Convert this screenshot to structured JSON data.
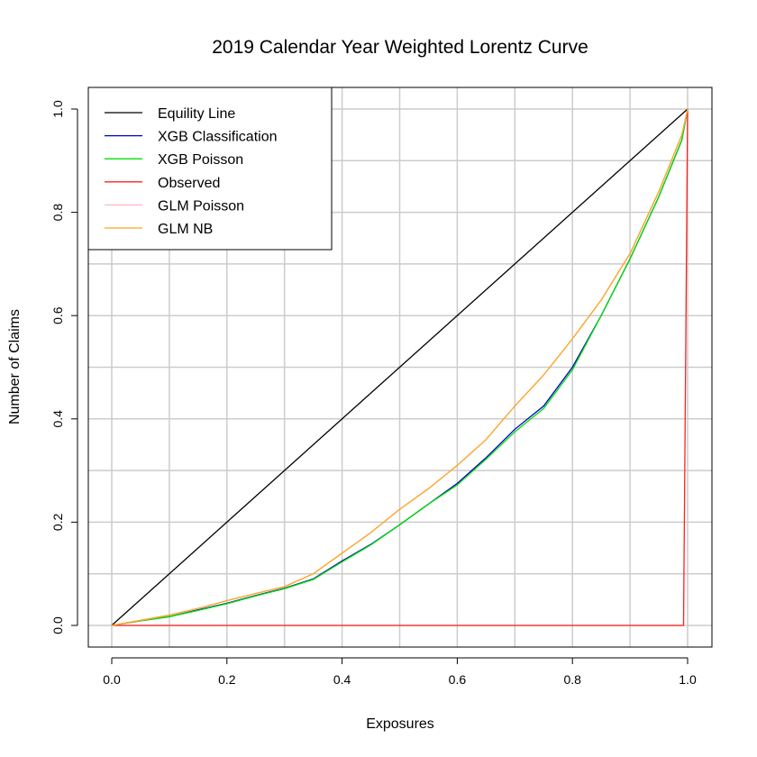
{
  "chart_data": {
    "type": "line",
    "title": "2019 Calendar Year Weighted Lorentz Curve",
    "xlabel": "Exposures",
    "ylabel": "Number of Claims",
    "xlim": [
      0.0,
      1.0
    ],
    "ylim": [
      0.0,
      1.0
    ],
    "x_ticks": [
      "0.0",
      "0.2",
      "0.4",
      "0.6",
      "0.8",
      "1.0"
    ],
    "y_ticks": [
      "0.0",
      "0.2",
      "0.4",
      "0.6",
      "0.8",
      "1.0"
    ],
    "x_tick_values": [
      0.0,
      0.2,
      0.4,
      0.6,
      0.8,
      1.0
    ],
    "y_tick_values": [
      0.0,
      0.2,
      0.4,
      0.6,
      0.8,
      1.0
    ],
    "grid": true,
    "grid_x": [
      0.0,
      0.1,
      0.2,
      0.3,
      0.4,
      0.5,
      0.6,
      0.7,
      0.8,
      0.9,
      1.0
    ],
    "grid_y": [
      0.0,
      0.1,
      0.2,
      0.3,
      0.4,
      0.5,
      0.6,
      0.7,
      0.8,
      0.9,
      1.0
    ],
    "legend_position": "top-left",
    "series": [
      {
        "name": "Equility Line",
        "color": "#000000",
        "x": [
          0.0,
          1.0
        ],
        "y": [
          0.0,
          1.0
        ]
      },
      {
        "name": "XGB Classification",
        "color": "#0000cd",
        "x": [
          0.0,
          0.05,
          0.1,
          0.15,
          0.2,
          0.25,
          0.3,
          0.35,
          0.4,
          0.45,
          0.5,
          0.55,
          0.6,
          0.65,
          0.7,
          0.75,
          0.8,
          0.85,
          0.9,
          0.95,
          0.99,
          1.0
        ],
        "y": [
          0.0,
          0.009,
          0.017,
          0.03,
          0.043,
          0.058,
          0.072,
          0.09,
          0.125,
          0.157,
          0.195,
          0.235,
          0.275,
          0.325,
          0.38,
          0.425,
          0.5,
          0.6,
          0.71,
          0.83,
          0.94,
          1.0
        ]
      },
      {
        "name": "XGB Poisson",
        "color": "#00e000",
        "x": [
          0.0,
          0.05,
          0.1,
          0.15,
          0.2,
          0.25,
          0.3,
          0.35,
          0.4,
          0.45,
          0.5,
          0.55,
          0.6,
          0.65,
          0.7,
          0.75,
          0.8,
          0.85,
          0.9,
          0.95,
          0.99,
          1.0
        ],
        "y": [
          0.0,
          0.009,
          0.017,
          0.029,
          0.042,
          0.057,
          0.071,
          0.089,
          0.123,
          0.156,
          0.195,
          0.235,
          0.272,
          0.322,
          0.375,
          0.42,
          0.495,
          0.6,
          0.71,
          0.83,
          0.94,
          1.0
        ]
      },
      {
        "name": "Observed",
        "color": "#ff2020",
        "x": [
          0.0,
          0.993,
          1.0
        ],
        "y": [
          0.0,
          0.0,
          1.0
        ]
      },
      {
        "name": "GLM Poisson",
        "color": "#ffb6c1",
        "x": [
          0.0,
          0.05,
          0.1,
          0.15,
          0.2,
          0.25,
          0.3,
          0.35,
          0.4,
          0.45,
          0.5,
          0.55,
          0.6,
          0.65,
          0.7,
          0.75,
          0.8,
          0.85,
          0.9,
          0.95,
          0.99,
          1.0
        ],
        "y": [
          0.0,
          0.01,
          0.02,
          0.033,
          0.048,
          0.062,
          0.075,
          0.1,
          0.14,
          0.18,
          0.225,
          0.265,
          0.31,
          0.36,
          0.425,
          0.485,
          0.555,
          0.63,
          0.72,
          0.84,
          0.95,
          1.0
        ]
      },
      {
        "name": "GLM NB",
        "color": "#ffa520",
        "x": [
          0.0,
          0.05,
          0.1,
          0.15,
          0.2,
          0.25,
          0.3,
          0.35,
          0.4,
          0.45,
          0.5,
          0.55,
          0.6,
          0.65,
          0.7,
          0.75,
          0.8,
          0.85,
          0.9,
          0.95,
          0.99,
          1.0
        ],
        "y": [
          0.0,
          0.01,
          0.02,
          0.033,
          0.048,
          0.062,
          0.075,
          0.1,
          0.14,
          0.18,
          0.225,
          0.265,
          0.31,
          0.36,
          0.425,
          0.485,
          0.555,
          0.63,
          0.72,
          0.84,
          0.95,
          1.0
        ]
      }
    ]
  }
}
